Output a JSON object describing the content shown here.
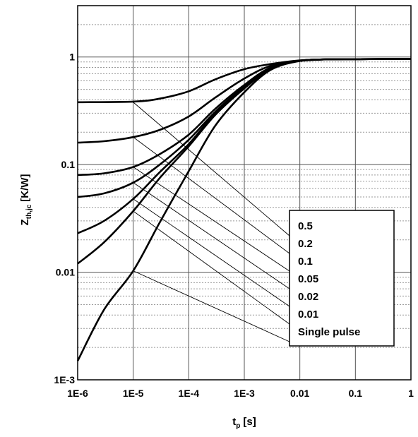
{
  "chart_data": {
    "type": "line",
    "x_scale": "log",
    "y_scale": "log",
    "xlim": [
      1e-06,
      1
    ],
    "ylim": [
      0.001,
      3
    ],
    "grid": true,
    "xlabel": "t",
    "xlabel_sub": "p",
    "xlabel_unit": "[s]",
    "ylabel": "Z",
    "ylabel_sub": "th,jc",
    "ylabel_unit": "[K/W]",
    "x_ticks": [
      {
        "value": 1e-06,
        "label": "1E-6"
      },
      {
        "value": 1e-05,
        "label": "1E-5"
      },
      {
        "value": 0.0001,
        "label": "1E-4"
      },
      {
        "value": 0.001,
        "label": "1E-3"
      },
      {
        "value": 0.01,
        "label": "0.01"
      },
      {
        "value": 0.1,
        "label": "0.1"
      },
      {
        "value": 1,
        "label": "1"
      }
    ],
    "y_ticks": [
      {
        "value": 0.001,
        "label": "1E-3"
      },
      {
        "value": 0.01,
        "label": "0.01"
      },
      {
        "value": 0.1,
        "label": "0.1"
      },
      {
        "value": 1,
        "label": "1"
      }
    ],
    "legend": {
      "placement": "right",
      "entries": [
        "0.5",
        "0.2",
        "0.1",
        "0.05",
        "0.02",
        "0.01",
        "Single pulse"
      ]
    },
    "series": [
      {
        "name": "0.5",
        "x": [
          1e-06,
          1e-05,
          3e-05,
          0.0001,
          0.0003,
          0.001,
          0.003,
          0.01,
          0.03,
          0.1,
          1
        ],
        "y": [
          0.38,
          0.385,
          0.41,
          0.48,
          0.62,
          0.77,
          0.86,
          0.93,
          0.95,
          0.955,
          0.96
        ]
      },
      {
        "name": "0.2",
        "x": [
          1e-06,
          3e-06,
          1e-05,
          3e-05,
          0.0001,
          0.0003,
          0.001,
          0.003,
          0.01,
          0.03,
          0.1,
          1
        ],
        "y": [
          0.16,
          0.165,
          0.18,
          0.21,
          0.28,
          0.42,
          0.63,
          0.83,
          0.92,
          0.95,
          0.955,
          0.96
        ]
      },
      {
        "name": "0.1",
        "x": [
          1e-06,
          3e-06,
          1e-05,
          3e-05,
          0.0001,
          0.0003,
          0.001,
          0.003,
          0.01,
          0.03,
          0.1,
          1
        ],
        "y": [
          0.08,
          0.083,
          0.095,
          0.125,
          0.19,
          0.33,
          0.55,
          0.8,
          0.92,
          0.95,
          0.955,
          0.96
        ]
      },
      {
        "name": "0.05",
        "x": [
          1e-06,
          3e-06,
          1e-05,
          3e-05,
          0.0001,
          0.0003,
          0.001,
          0.003,
          0.01,
          0.03,
          0.1,
          1
        ],
        "y": [
          0.05,
          0.054,
          0.068,
          0.1,
          0.17,
          0.31,
          0.53,
          0.79,
          0.92,
          0.95,
          0.955,
          0.96
        ]
      },
      {
        "name": "0.02",
        "x": [
          1e-06,
          3e-06,
          1e-05,
          3e-05,
          0.0001,
          0.0003,
          0.001,
          0.003,
          0.01,
          0.03,
          0.1,
          1
        ],
        "y": [
          0.023,
          0.03,
          0.048,
          0.085,
          0.155,
          0.3,
          0.52,
          0.78,
          0.92,
          0.95,
          0.955,
          0.96
        ]
      },
      {
        "name": "0.01",
        "x": [
          1e-06,
          3e-06,
          1e-05,
          3e-05,
          0.0001,
          0.0003,
          0.001,
          0.003,
          0.01,
          0.03,
          0.1,
          1
        ],
        "y": [
          0.012,
          0.019,
          0.037,
          0.075,
          0.148,
          0.29,
          0.51,
          0.78,
          0.92,
          0.95,
          0.955,
          0.96
        ]
      },
      {
        "name": "Single pulse",
        "x": [
          1e-06,
          3e-06,
          1e-05,
          3e-05,
          0.0001,
          0.0003,
          0.001,
          0.003,
          0.01,
          0.03,
          0.1,
          1
        ],
        "y": [
          0.0015,
          0.0045,
          0.0103,
          0.029,
          0.087,
          0.23,
          0.47,
          0.76,
          0.92,
          0.95,
          0.955,
          0.96
        ]
      }
    ],
    "annotations": [
      {
        "label": "0.5",
        "from": [
          1e-05,
          0.38
        ]
      },
      {
        "label": "0.2",
        "from": [
          1e-05,
          0.18
        ]
      },
      {
        "label": "0.1",
        "from": [
          1e-05,
          0.095
        ]
      },
      {
        "label": "0.05",
        "from": [
          1e-05,
          0.068
        ]
      },
      {
        "label": "0.02",
        "from": [
          1e-05,
          0.048
        ]
      },
      {
        "label": "0.01",
        "from": [
          1e-05,
          0.037
        ]
      },
      {
        "label": "Single pulse",
        "from": [
          1e-05,
          0.0103
        ]
      }
    ]
  }
}
